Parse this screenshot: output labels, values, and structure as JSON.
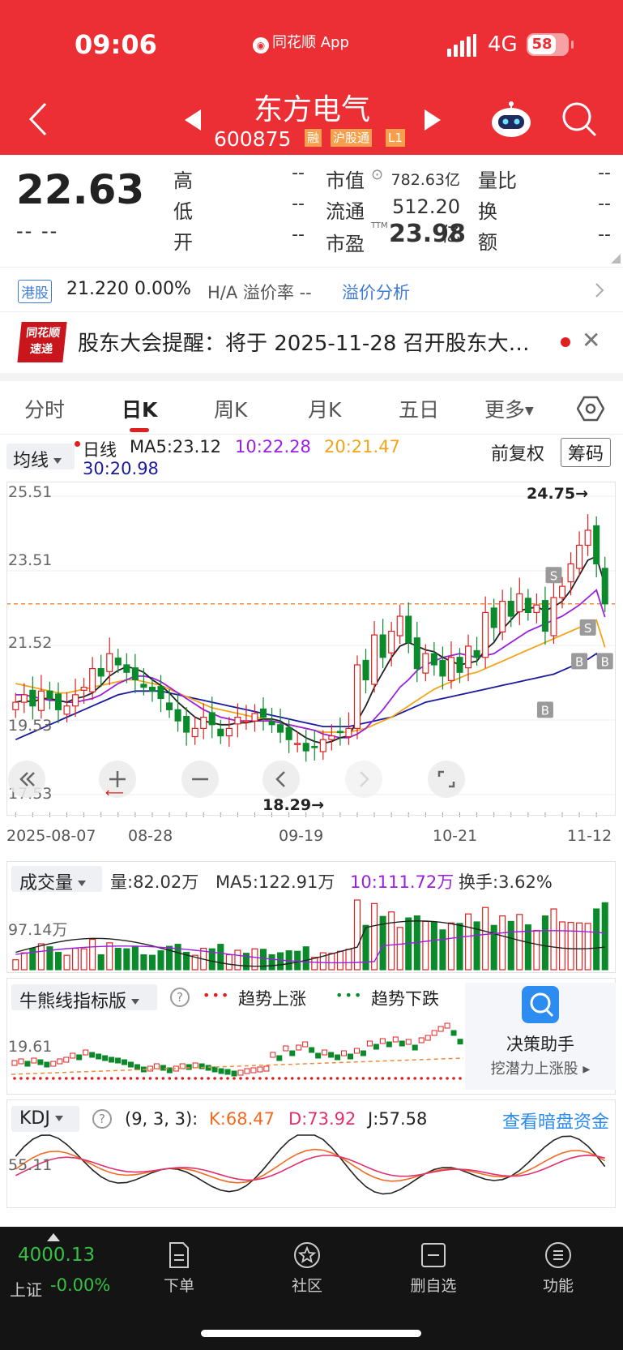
{
  "status_bar": {
    "time": "09:06",
    "app_name": "同花顺 App",
    "network": "4G",
    "battery": "58"
  },
  "header": {
    "stock_name": "东方电气",
    "stock_code": "600875",
    "tags": [
      "融",
      "沪股通",
      "L1"
    ]
  },
  "quote": {
    "price": "22.63",
    "change": "-- --",
    "high_label": "高",
    "high": "--",
    "low_label": "低",
    "low": "--",
    "open_label": "开",
    "open": "--",
    "mcap_label": "市值",
    "mcap": "782.63亿",
    "float_label": "流通",
    "float": "512.20亿",
    "pe_label": "市盈",
    "pe_sup": "TTM",
    "pe": "23.98",
    "vol_ratio_label": "量比",
    "vol_ratio": "--",
    "turnover_label": "换",
    "turnover": "--",
    "amount_label": "额",
    "amount": "--"
  },
  "hk": {
    "badge": "港股",
    "price": "21.220  0.00%",
    "premium_label": "H/A 溢价率 --",
    "link": "溢价分析"
  },
  "news": {
    "logo_line1": "同花顺",
    "logo_line2": "速递",
    "text": "股东大会提醒：将于 2025-11-28 召开股东大…"
  },
  "tabs": [
    "分时",
    "日K",
    "周K",
    "月K",
    "五日",
    "更多"
  ],
  "kline": {
    "indicator_select": "均线",
    "line_label": "日线",
    "ma5": "MA5:23.12",
    "ma10": "10:22.28",
    "ma20": "20:21.47",
    "ma30": "30:20.98",
    "adjust": "前复权",
    "chips": "筹码",
    "y_ticks": [
      "25.51",
      "23.51",
      "21.52",
      "19.53",
      "17.53"
    ],
    "x_ticks": [
      "2025-08-07",
      "08-28",
      "09-19",
      "10-21",
      "11-12"
    ],
    "high_note": "24.75→",
    "low_note": "18.29→",
    "colors": {
      "up": "#e02020",
      "down": "#0a8a2a",
      "ma5": "#222222",
      "ma10": "#9b1fe0",
      "ma20": "#f2a51a",
      "ma30": "#1a1a9e"
    }
  },
  "volume": {
    "select": "成交量",
    "vol": "量:82.02万",
    "ma5": "MA5:122.91万",
    "ma10": "10:111.72万",
    "turnover": "换手:3.62%",
    "y_tick": "97.14万"
  },
  "bullbear": {
    "select": "牛熊线指标版",
    "up_label": "趋势上涨",
    "down_label": "趋势下跌",
    "y_tick": "19.61",
    "helper_title": "决策助手",
    "helper_sub": "挖潜力上涨股 ▸"
  },
  "kdj": {
    "select": "KDJ",
    "params": "(9, 3, 3):",
    "k": "K:68.47",
    "d": "D:73.92",
    "j": "J:57.58",
    "link": "查看暗盘资金",
    "y_tick": "55.11"
  },
  "chart_data": {
    "type": "candlestick",
    "title": "东方电气 600875 日K",
    "x_range": [
      "2025-08-07",
      "2025-11-12"
    ],
    "ylim": [
      17.53,
      25.51
    ],
    "close": [
      20.0,
      20.2,
      19.9,
      20.3,
      20.1,
      19.8,
      19.9,
      20.2,
      20.4,
      20.9,
      20.7,
      21.3,
      21.0,
      20.8,
      20.6,
      20.4,
      20.3,
      20.1,
      19.8,
      19.5,
      19.2,
      19.3,
      19.6,
      19.4,
      19.1,
      19.3,
      19.6,
      19.5,
      19.7,
      19.6,
      19.4,
      19.2,
      19.0,
      18.9,
      18.7,
      18.8,
      19.0,
      19.1,
      19.2,
      19.3,
      21.0,
      20.6,
      21.8,
      21.2,
      21.9,
      22.3,
      21.6,
      20.9,
      21.3,
      21.0,
      20.7,
      21.2,
      20.8,
      21.5,
      21.2,
      22.4,
      22.0,
      22.7,
      22.3,
      22.9,
      22.4,
      22.6,
      21.9,
      22.8,
      23.1,
      23.7,
      24.2,
      24.6,
      23.7,
      22.63
    ],
    "ma5": [
      20.0,
      20.05,
      20.0,
      20.1,
      20.1,
      20.05,
      20.0,
      20.1,
      20.15,
      20.25,
      20.45,
      20.7,
      20.85,
      20.95,
      20.9,
      20.8,
      20.6,
      20.45,
      20.25,
      20.0,
      19.8,
      19.6,
      19.5,
      19.45,
      19.4,
      19.4,
      19.45,
      19.45,
      19.5,
      19.55,
      19.55,
      19.5,
      19.35,
      19.2,
      19.05,
      18.95,
      18.9,
      18.95,
      19.05,
      19.1,
      19.5,
      19.9,
      20.4,
      20.8,
      21.2,
      21.5,
      21.6,
      21.5,
      21.4,
      21.35,
      21.2,
      21.1,
      21.0,
      21.05,
      21.1,
      21.4,
      21.6,
      21.95,
      22.2,
      22.45,
      22.5,
      22.55,
      22.45,
      22.55,
      22.7,
      23.0,
      23.4,
      23.8,
      23.9,
      23.12
    ],
    "ma10": [
      20.2,
      20.2,
      20.15,
      20.1,
      20.05,
      20.05,
      20.0,
      20.0,
      20.05,
      20.1,
      20.2,
      20.35,
      20.5,
      20.6,
      20.7,
      20.7,
      20.65,
      20.55,
      20.4,
      20.25,
      20.1,
      19.95,
      19.8,
      19.7,
      19.6,
      19.55,
      19.5,
      19.5,
      19.5,
      19.5,
      19.5,
      19.45,
      19.4,
      19.35,
      19.3,
      19.25,
      19.15,
      19.1,
      19.05,
      19.05,
      19.15,
      19.3,
      19.55,
      19.8,
      20.1,
      20.4,
      20.6,
      20.85,
      21.0,
      21.1,
      21.2,
      21.25,
      21.3,
      21.25,
      21.2,
      21.25,
      21.3,
      21.45,
      21.6,
      21.75,
      21.9,
      22.0,
      22.1,
      22.2,
      22.3,
      22.45,
      22.6,
      22.8,
      23.0,
      22.28
    ],
    "ma20": [
      20.5,
      20.45,
      20.4,
      20.35,
      20.3,
      20.25,
      20.25,
      20.3,
      20.35,
      20.4,
      20.45,
      20.5,
      20.55,
      20.6,
      20.6,
      20.55,
      20.5,
      20.45,
      20.35,
      20.25,
      20.15,
      20.05,
      19.95,
      19.85,
      19.8,
      19.75,
      19.7,
      19.65,
      19.6,
      19.55,
      19.5,
      19.45,
      19.4,
      19.35,
      19.3,
      19.25,
      19.2,
      19.2,
      19.2,
      19.2,
      19.25,
      19.3,
      19.4,
      19.5,
      19.6,
      19.75,
      19.9,
      20.05,
      20.2,
      20.35,
      20.45,
      20.55,
      20.65,
      20.75,
      20.8,
      20.9,
      21.0,
      21.1,
      21.2,
      21.3,
      21.4,
      21.5,
      21.6,
      21.7,
      21.8,
      21.9,
      22.0,
      22.1,
      22.2,
      21.47
    ],
    "ma30": [
      19.0,
      19.1,
      19.2,
      19.3,
      19.4,
      19.5,
      19.6,
      19.7,
      19.8,
      19.9,
      20.0,
      20.1,
      20.2,
      20.25,
      20.3,
      20.3,
      20.3,
      20.3,
      20.25,
      20.2,
      20.15,
      20.1,
      20.05,
      20.0,
      19.95,
      19.9,
      19.85,
      19.8,
      19.75,
      19.7,
      19.65,
      19.6,
      19.55,
      19.5,
      19.45,
      19.4,
      19.35,
      19.35,
      19.35,
      19.35,
      19.4,
      19.45,
      19.5,
      19.55,
      19.6,
      19.7,
      19.8,
      19.9,
      20.0,
      20.05,
      20.1,
      20.15,
      20.2,
      20.25,
      20.3,
      20.35,
      20.4,
      20.45,
      20.5,
      20.55,
      20.6,
      20.65,
      20.7,
      20.75,
      20.85,
      20.95,
      21.05,
      21.15,
      21.3,
      20.98
    ],
    "high_value": 24.75,
    "low_value": 18.29,
    "ref_line": 22.63
  }
}
